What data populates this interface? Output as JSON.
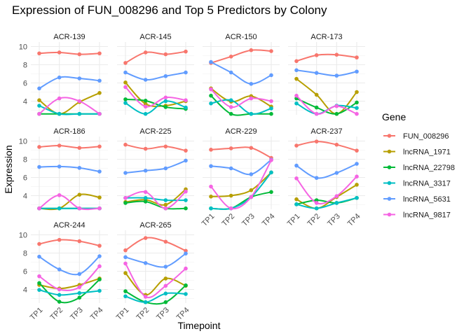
{
  "chart_data": {
    "type": "line",
    "title": "Expression of FUN_008296 and Top 5 Predictors by Colony",
    "xlabel": "Timepoint",
    "ylabel": "Expression",
    "x": [
      "TP1",
      "TP2",
      "TP3",
      "TP4"
    ],
    "ylim": [
      2.5,
      10.5
    ],
    "yticks": [
      4,
      6,
      8,
      10
    ],
    "grid": true,
    "legend": {
      "title": "Gene",
      "position": "right",
      "entries": [
        "FUN_008296",
        "lncRNA_1971",
        "lncRNA_22798",
        "lncRNA_3317",
        "lncRNA_5631",
        "lncRNA_9817"
      ]
    },
    "colors": {
      "FUN_008296": "#F8766D",
      "lncRNA_1971": "#B79F00",
      "lncRNA_22798": "#00BA38",
      "lncRNA_3317": "#00BFC4",
      "lncRNA_5631": "#619CFF",
      "lncRNA_9817": "#F564E3"
    },
    "panels": [
      {
        "label": "ACR-139",
        "series": [
          {
            "name": "FUN_008296",
            "values": [
              9.25,
              9.35,
              9.15,
              9.25
            ]
          },
          {
            "name": "lncRNA_1971",
            "values": [
              4.1,
              2.6,
              3.9,
              4.9
            ]
          },
          {
            "name": "lncRNA_22798",
            "values": [
              2.6,
              2.6,
              2.6,
              2.6
            ]
          },
          {
            "name": "lncRNA_3317",
            "values": [
              3.5,
              2.6,
              2.6,
              2.6
            ]
          },
          {
            "name": "lncRNA_5631",
            "values": [
              5.4,
              6.6,
              6.5,
              6.25
            ]
          },
          {
            "name": "lncRNA_9817",
            "values": [
              2.6,
              4.3,
              4.0,
              2.6
            ]
          }
        ]
      },
      {
        "label": "ACR-145",
        "series": [
          {
            "name": "FUN_008296",
            "values": [
              8.2,
              9.35,
              9.15,
              9.45
            ]
          },
          {
            "name": "lncRNA_1971",
            "values": [
              6.05,
              3.7,
              3.5,
              4.0
            ]
          },
          {
            "name": "lncRNA_22798",
            "values": [
              4.2,
              4.05,
              3.35,
              3.15
            ]
          },
          {
            "name": "lncRNA_3317",
            "values": [
              3.8,
              2.6,
              4.0,
              3.3
            ]
          },
          {
            "name": "lncRNA_5631",
            "values": [
              7.15,
              6.35,
              6.75,
              7.15
            ]
          },
          {
            "name": "lncRNA_9817",
            "values": [
              5.55,
              3.4,
              4.4,
              4.1
            ]
          }
        ]
      },
      {
        "label": "ACR-150",
        "series": [
          {
            "name": "FUN_008296",
            "values": [
              8.2,
              8.9,
              9.6,
              9.5
            ]
          },
          {
            "name": "lncRNA_1971",
            "values": [
              5.4,
              3.95,
              4.55,
              3.4
            ]
          },
          {
            "name": "lncRNA_22798",
            "values": [
              4.6,
              2.6,
              2.6,
              2.6
            ]
          },
          {
            "name": "lncRNA_3317",
            "values": [
              3.75,
              4.1,
              2.6,
              3.2
            ]
          },
          {
            "name": "lncRNA_5631",
            "values": [
              8.3,
              7.15,
              5.9,
              6.85
            ]
          },
          {
            "name": "lncRNA_9817",
            "values": [
              5.3,
              3.35,
              4.3,
              4.0
            ]
          }
        ]
      },
      {
        "label": "ACR-173",
        "series": [
          {
            "name": "FUN_008296",
            "values": [
              8.4,
              9.05,
              9.1,
              8.8
            ]
          },
          {
            "name": "lncRNA_1971",
            "values": [
              6.45,
              4.7,
              2.6,
              5.0
            ]
          },
          {
            "name": "lncRNA_22798",
            "values": [
              4.3,
              3.3,
              2.6,
              3.85
            ]
          },
          {
            "name": "lncRNA_3317",
            "values": [
              3.75,
              2.6,
              3.5,
              3.25
            ]
          },
          {
            "name": "lncRNA_5631",
            "values": [
              7.4,
              7.1,
              6.8,
              7.25
            ]
          },
          {
            "name": "lncRNA_9817",
            "values": [
              4.6,
              2.6,
              3.45,
              2.6
            ]
          }
        ]
      },
      {
        "label": "ACR-186",
        "series": [
          {
            "name": "FUN_008296",
            "values": [
              9.35,
              9.5,
              9.25,
              9.4
            ]
          },
          {
            "name": "lncRNA_1971",
            "values": [
              2.6,
              2.6,
              4.1,
              3.8
            ]
          },
          {
            "name": "lncRNA_22798",
            "values": [
              2.6,
              2.6,
              2.6,
              2.6
            ]
          },
          {
            "name": "lncRNA_3317",
            "values": [
              2.6,
              2.6,
              2.6,
              2.6
            ]
          },
          {
            "name": "lncRNA_5631",
            "values": [
              7.15,
              7.2,
              7.05,
              6.65
            ]
          },
          {
            "name": "lncRNA_9817",
            "values": [
              2.6,
              4.05,
              2.6,
              2.6
            ]
          }
        ]
      },
      {
        "label": "ACR-225",
        "series": [
          {
            "name": "FUN_008296",
            "values": [
              9.6,
              9.15,
              9.4,
              8.95
            ]
          },
          {
            "name": "lncRNA_1971",
            "values": [
              3.3,
              3.55,
              3.0,
              4.7
            ]
          },
          {
            "name": "lncRNA_22798",
            "values": [
              3.2,
              3.35,
              2.6,
              2.6
            ]
          },
          {
            "name": "lncRNA_3317",
            "values": [
              3.75,
              3.75,
              3.5,
              3.5
            ]
          },
          {
            "name": "lncRNA_5631",
            "values": [
              6.5,
              6.75,
              7.0,
              7.85
            ]
          },
          {
            "name": "lncRNA_9817",
            "values": [
              3.75,
              4.4,
              2.6,
              4.45
            ]
          }
        ]
      },
      {
        "label": "ACR-229",
        "series": [
          {
            "name": "FUN_008296",
            "values": [
              9.05,
              9.2,
              9.25,
              8.15
            ]
          },
          {
            "name": "lncRNA_1971",
            "values": [
              3.9,
              4.0,
              4.6,
              6.55
            ]
          },
          {
            "name": "lncRNA_22798",
            "values": [
              2.6,
              2.6,
              3.85,
              4.4
            ]
          },
          {
            "name": "lncRNA_3317",
            "values": [
              2.6,
              2.6,
              3.85,
              6.55
            ]
          },
          {
            "name": "lncRNA_5631",
            "values": [
              7.25,
              7.0,
              6.35,
              7.95
            ]
          },
          {
            "name": "lncRNA_9817",
            "values": [
              5.0,
              2.6,
              3.85,
              7.9
            ]
          }
        ]
      },
      {
        "label": "ACR-237",
        "series": [
          {
            "name": "FUN_008296",
            "values": [
              9.5,
              9.95,
              9.6,
              8.95
            ]
          },
          {
            "name": "lncRNA_1971",
            "values": [
              3.6,
              2.6,
              3.85,
              5.2
            ]
          },
          {
            "name": "lncRNA_22798",
            "values": [
              3.05,
              3.5,
              3.2,
              3.75
            ]
          },
          {
            "name": "lncRNA_3317",
            "values": [
              3.05,
              2.6,
              3.2,
              3.75
            ]
          },
          {
            "name": "lncRNA_5631",
            "values": [
              7.3,
              5.95,
              6.5,
              7.5
            ]
          },
          {
            "name": "lncRNA_9817",
            "values": [
              5.9,
              3.2,
              3.95,
              6.1
            ]
          }
        ]
      },
      {
        "label": "ACR-244",
        "series": [
          {
            "name": "FUN_008296",
            "values": [
              9.0,
              9.45,
              9.3,
              8.8
            ]
          },
          {
            "name": "lncRNA_1971",
            "values": [
              4.5,
              4.1,
              4.5,
              5.2
            ]
          },
          {
            "name": "lncRNA_22798",
            "values": [
              4.7,
              2.65,
              3.1,
              5.1
            ]
          },
          {
            "name": "lncRNA_3317",
            "values": [
              3.95,
              3.4,
              3.6,
              3.85
            ]
          },
          {
            "name": "lncRNA_5631",
            "values": [
              7.6,
              6.2,
              5.7,
              7.65
            ]
          },
          {
            "name": "lncRNA_9817",
            "values": [
              5.45,
              4.0,
              4.25,
              6.55
            ]
          }
        ]
      },
      {
        "label": "ACR-265",
        "series": [
          {
            "name": "FUN_008296",
            "values": [
              8.3,
              9.65,
              9.25,
              8.25
            ]
          },
          {
            "name": "lncRNA_1971",
            "values": [
              5.8,
              3.4,
              5.2,
              4.4
            ]
          },
          {
            "name": "lncRNA_22798",
            "values": [
              3.8,
              2.6,
              2.6,
              4.45
            ]
          },
          {
            "name": "lncRNA_3317",
            "values": [
              3.25,
              2.6,
              3.55,
              3.5
            ]
          },
          {
            "name": "lncRNA_5631",
            "values": [
              7.55,
              6.9,
              6.5,
              7.95
            ]
          },
          {
            "name": "lncRNA_9817",
            "values": [
              6.85,
              3.2,
              4.4,
              6.3
            ]
          }
        ]
      }
    ]
  }
}
